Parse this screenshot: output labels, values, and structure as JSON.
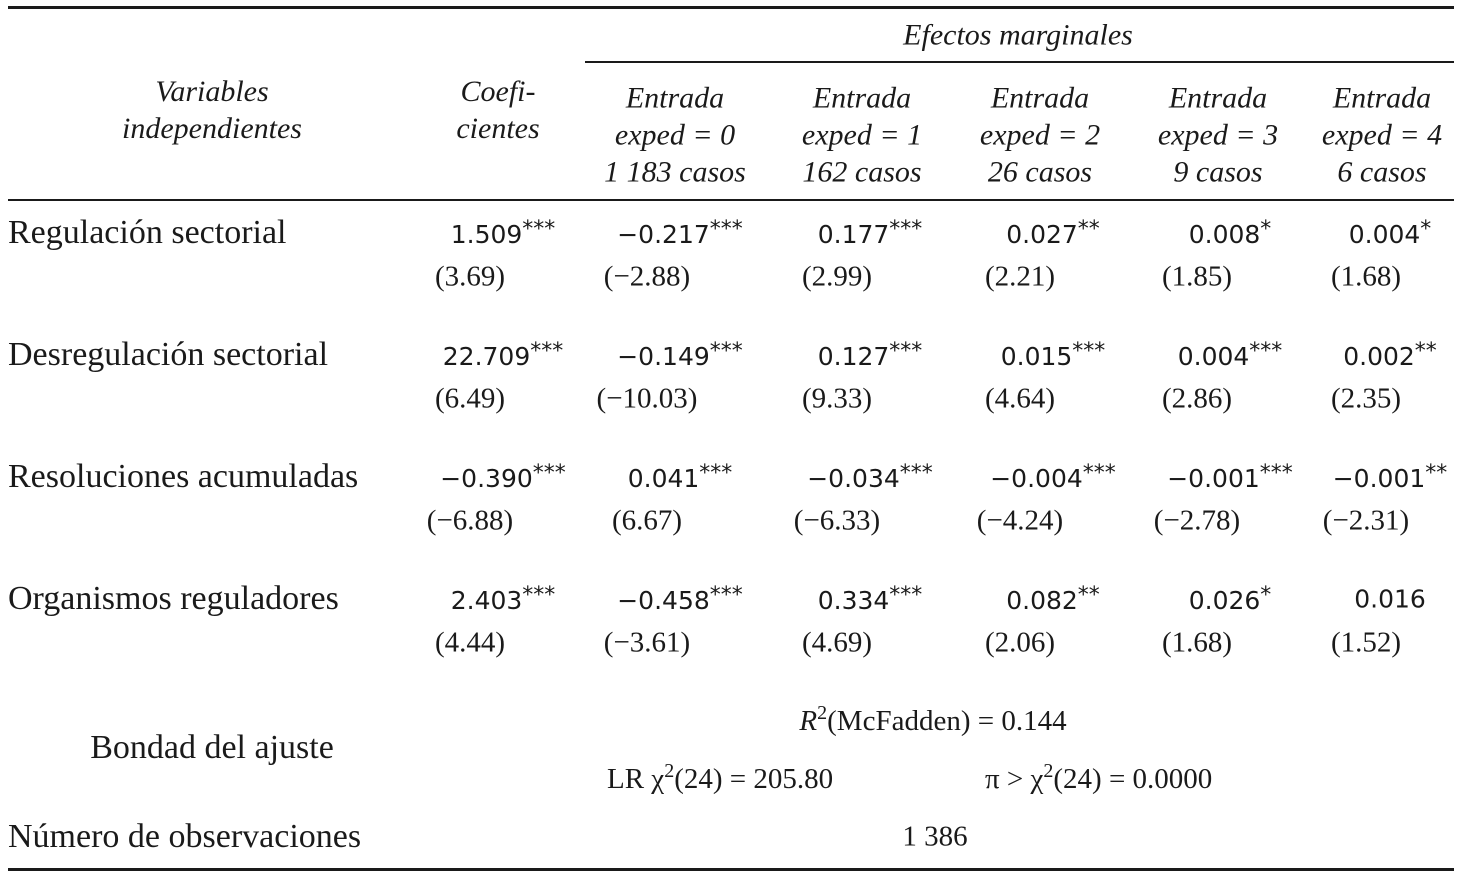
{
  "header": {
    "group": "Efectos marginales",
    "columns": [
      [
        "Variables",
        "independientes"
      ],
      [
        "Coefi-",
        "cientes"
      ],
      [
        "Entrada",
        "exped = 0",
        "1 183 casos"
      ],
      [
        "Entrada",
        "exped = 1",
        "162 casos"
      ],
      [
        "Entrada",
        "exped = 2",
        "26 casos"
      ],
      [
        "Entrada",
        "exped = 3",
        "9 casos"
      ],
      [
        "Entrada",
        "exped = 4",
        "6 casos"
      ]
    ]
  },
  "table": {
    "rows": [
      {
        "label": "Regulación sectorial",
        "cells": [
          {
            "value": "1.509",
            "stars": "***",
            "t": "(3.69)"
          },
          {
            "value": "−0.217",
            "stars": "***",
            "t": "(−2.88)"
          },
          {
            "value": "0.177",
            "stars": "***",
            "t": "(2.99)"
          },
          {
            "value": "0.027",
            "stars": "**",
            "t": "(2.21)"
          },
          {
            "value": "0.008",
            "stars": "*",
            "t": "(1.85)"
          },
          {
            "value": "0.004",
            "stars": "*",
            "t": "(1.68)"
          }
        ]
      },
      {
        "label": "Desregulación sectorial",
        "cells": [
          {
            "value": "22.709",
            "stars": "***",
            "t": "(6.49)"
          },
          {
            "value": "−0.149",
            "stars": "***",
            "t": "(−10.03)"
          },
          {
            "value": "0.127",
            "stars": "***",
            "t": "(9.33)"
          },
          {
            "value": "0.015",
            "stars": "***",
            "t": "(4.64)"
          },
          {
            "value": "0.004",
            "stars": "***",
            "t": "(2.86)"
          },
          {
            "value": "0.002",
            "stars": "**",
            "t": "(2.35)"
          }
        ]
      },
      {
        "label": "Resoluciones acumuladas",
        "cells": [
          {
            "value": "−0.390",
            "stars": "***",
            "t": "(−6.88)"
          },
          {
            "value": "0.041",
            "stars": "***",
            "t": "(6.67)"
          },
          {
            "value": "−0.034",
            "stars": "***",
            "t": "(−6.33)"
          },
          {
            "value": "−0.004",
            "stars": "***",
            "t": "(−4.24)"
          },
          {
            "value": "−0.001",
            "stars": "***",
            "t": "(−2.78)"
          },
          {
            "value": "−0.001",
            "stars": "**",
            "t": "(−2.31)"
          }
        ]
      },
      {
        "label": "Organismos reguladores",
        "cells": [
          {
            "value": "2.403",
            "stars": "***",
            "t": "(4.44)"
          },
          {
            "value": "−0.458",
            "stars": "***",
            "t": "(−3.61)"
          },
          {
            "value": "0.334",
            "stars": "***",
            "t": "(4.69)"
          },
          {
            "value": "0.082",
            "stars": "**",
            "t": "(2.06)"
          },
          {
            "value": "0.026",
            "stars": "*",
            "t": "(1.68)"
          },
          {
            "value": "0.016",
            "t": "(1.52)"
          }
        ]
      }
    ]
  },
  "fit": {
    "label": "Bondad del ajuste",
    "r2_symbol": "R",
    "r2_exp": "2",
    "r2_text": "(McFadden) = 0.144",
    "lr_symbol": "LR χ",
    "lr_exp": "2",
    "lr_text": "(24) = 205.80",
    "p_symbol": "π > χ",
    "p_exp": "2",
    "p_text": "(24) = 0.0000"
  },
  "observations": {
    "label": "Número de observaciones",
    "value": "1 386"
  }
}
